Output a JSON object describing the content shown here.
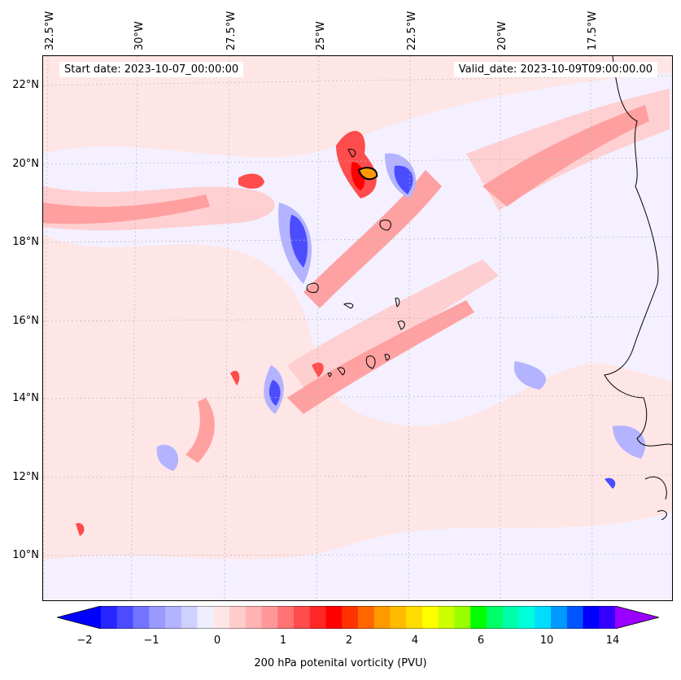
{
  "map": {
    "start_date": "Start date: 2023-10-07_00:00:00",
    "valid_date": "Valid_date: 2023-10-09T09:00:00.00",
    "longitude_labels": [
      "32.5°W",
      "30°W",
      "27.5°W",
      "25°W",
      "22.5°W",
      "20°W",
      "17.5°W"
    ],
    "latitude_labels": [
      "22°N",
      "20°N",
      "18°N",
      "16°N",
      "14°N",
      "12°N",
      "10°N"
    ],
    "extent": {
      "lon_min": -32.9,
      "lon_max": -15.4,
      "lat_min": 8.9,
      "lat_max": 22.8
    }
  },
  "colorbar": {
    "title": "200 hPa potenital vorticity (PVU)",
    "tick_labels": [
      "−2",
      "−1",
      "0",
      "1",
      "2",
      "4",
      "6",
      "10",
      "14"
    ],
    "colors": [
      "#0000ff",
      "#2626ff",
      "#4c4cff",
      "#7373ff",
      "#9999ff",
      "#b3b3ff",
      "#d0d0ff",
      "#eeeeff",
      "#ffe6e6",
      "#ffcccc",
      "#ffb3b3",
      "#ff9999",
      "#ff7373",
      "#ff4c4c",
      "#ff2626",
      "#ff0000",
      "#ff3300",
      "#ff6600",
      "#ff9900",
      "#ffbb00",
      "#ffdd00",
      "#ffff00",
      "#ccff00",
      "#99ff00",
      "#00ff00",
      "#00ff66",
      "#00ffaa",
      "#00ffdd",
      "#00ddff",
      "#0099ff",
      "#0055ff",
      "#0000ff",
      "#3300ff",
      "#9900ff"
    ]
  }
}
